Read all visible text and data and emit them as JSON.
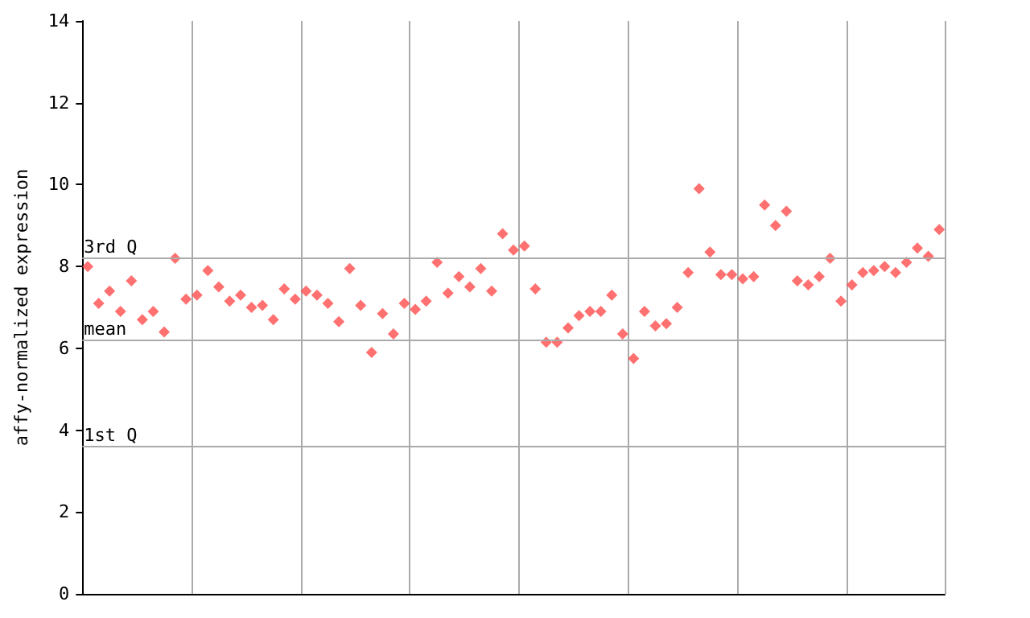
{
  "chart_data": {
    "type": "scatter",
    "ylabel": "affy-normalized expression",
    "categories": [
      null,
      null,
      null,
      null,
      null,
      null,
      null,
      null,
      null,
      null,
      null,
      null,
      null,
      null,
      null,
      null,
      null,
      null,
      null,
      null,
      null,
      null,
      null,
      null,
      null,
      null,
      null,
      null,
      null,
      null,
      null,
      null,
      null,
      null,
      null,
      null,
      null,
      null,
      null,
      null,
      null,
      null,
      null,
      null,
      null,
      null,
      null,
      null,
      null,
      null,
      null,
      null,
      null,
      null,
      null,
      null,
      null,
      null,
      null,
      null,
      null,
      null,
      null,
      null,
      null,
      null,
      null,
      null,
      null,
      null,
      null,
      null,
      null,
      null,
      null,
      null,
      null,
      null,
      null
    ],
    "series": [
      {
        "color": "#ff4d4d",
        "values": [
          8.0,
          7.1,
          7.4,
          6.9,
          7.65,
          6.7,
          6.9,
          6.4,
          8.2,
          7.2,
          7.3,
          7.9,
          7.5,
          7.15,
          7.3,
          7.0,
          7.05,
          6.7,
          7.45,
          7.2,
          7.4,
          7.3,
          7.1,
          6.65,
          7.95,
          7.05,
          5.9,
          6.85,
          6.35,
          7.1,
          6.95,
          7.15,
          8.1,
          7.35,
          7.75,
          7.5,
          7.95,
          7.4,
          8.8,
          8.4,
          8.5,
          7.45,
          6.15,
          6.15,
          6.5,
          6.8,
          6.9,
          6.9,
          7.3,
          6.35,
          5.75,
          6.9,
          6.55,
          6.6,
          7.0,
          7.85,
          9.9,
          8.35,
          7.8,
          7.8,
          7.7,
          7.75,
          9.5,
          9.0,
          9.35,
          7.65,
          7.55,
          7.75,
          8.2,
          7.15,
          7.55,
          7.85,
          7.9,
          8.0,
          7.85,
          8.1,
          8.45,
          8.25,
          8.9
        ]
      }
    ],
    "ylim": [
      0,
      14
    ],
    "yticks": [
      0,
      2,
      4,
      6,
      8,
      10,
      12,
      14
    ],
    "ref_lines": [
      {
        "axis": "y",
        "value": 8.22,
        "label": "3rd Q",
        "color": "#aaaaaa"
      },
      {
        "axis": "y",
        "value": 6.21,
        "label": "mean",
        "color": "#aaaaaa"
      },
      {
        "axis": "y",
        "value": 3.62,
        "label": "1st Q",
        "color": "#aaaaaa"
      }
    ],
    "grid": "x",
    "tick_labels": "y",
    "marker": "diamond"
  }
}
